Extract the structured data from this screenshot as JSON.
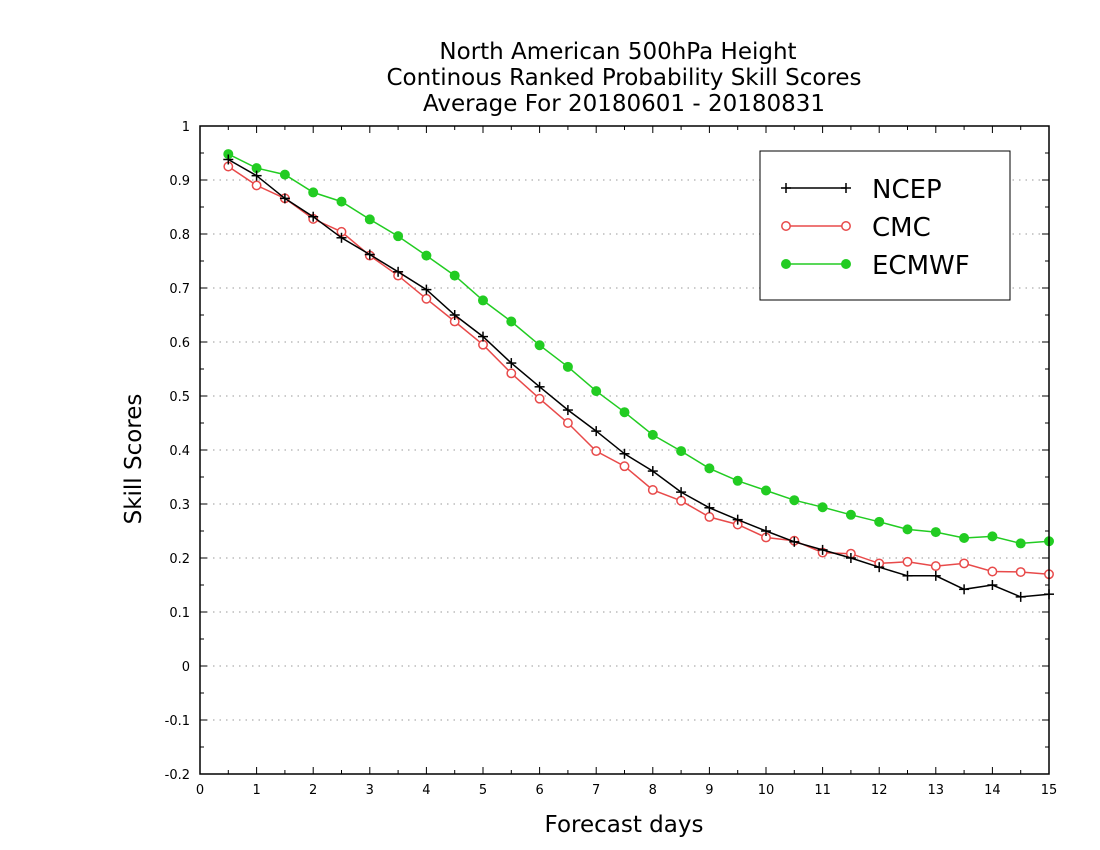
{
  "chart_data": {
    "type": "line",
    "title_lines": [
      "North American 500hPa Height",
      "Continous Ranked Probability Skill Scores",
      "Average For 20180601 - 20180831"
    ],
    "xlabel": "Forecast days",
    "ylabel": "Skill Scores",
    "xlim": [
      0,
      15
    ],
    "ylim": [
      -0.2,
      1
    ],
    "x_ticks": [
      0,
      1,
      2,
      3,
      4,
      5,
      6,
      7,
      8,
      9,
      10,
      11,
      12,
      13,
      14,
      15
    ],
    "x_tick_labels": [
      "0",
      "1",
      "2",
      "3",
      "4",
      "5",
      "6",
      "7",
      "8",
      "9",
      "10",
      "11",
      "12",
      "13",
      "14",
      "15"
    ],
    "y_ticks": [
      -0.2,
      -0.1,
      0,
      0.1,
      0.2,
      0.3,
      0.4,
      0.5,
      0.6,
      0.7,
      0.8,
      0.9,
      1
    ],
    "y_tick_labels": [
      "-0.2",
      "-0.1",
      "0",
      "0.1",
      "0.2",
      "0.3",
      "0.4",
      "0.5",
      "0.6",
      "0.7",
      "0.8",
      "0.9",
      "1"
    ],
    "grid": "horizontal dotted",
    "legend_position": "top-right",
    "x": [
      0.5,
      1,
      1.5,
      2,
      2.5,
      3,
      3.5,
      4,
      4.5,
      5,
      5.5,
      6,
      6.5,
      7,
      7.5,
      8,
      8.5,
      9,
      9.5,
      10,
      10.5,
      11,
      11.5,
      12,
      12.5,
      13,
      13.5,
      14,
      14.5,
      15
    ],
    "series": [
      {
        "name": "NCEP",
        "color": "#000000",
        "marker": "plus",
        "values": [
          0.938,
          0.908,
          0.866,
          0.832,
          0.793,
          0.762,
          0.73,
          0.697,
          0.65,
          0.61,
          0.561,
          0.517,
          0.474,
          0.435,
          0.393,
          0.361,
          0.322,
          0.293,
          0.271,
          0.25,
          0.23,
          0.215,
          0.2,
          0.183,
          0.167,
          0.167,
          0.142,
          0.15,
          0.128,
          0.133
        ]
      },
      {
        "name": "CMC",
        "color": "#e84a4a",
        "marker": "open-circle",
        "values": [
          0.925,
          0.89,
          0.866,
          0.828,
          0.804,
          0.76,
          0.723,
          0.68,
          0.638,
          0.595,
          0.542,
          0.495,
          0.45,
          0.398,
          0.37,
          0.326,
          0.306,
          0.276,
          0.262,
          0.238,
          0.232,
          0.21,
          0.208,
          0.19,
          0.193,
          0.185,
          0.19,
          0.175,
          0.174,
          0.17
        ]
      },
      {
        "name": "ECMWF",
        "color": "#22cc22",
        "marker": "filled-circle",
        "values": [
          0.948,
          0.922,
          0.91,
          0.877,
          0.86,
          0.827,
          0.796,
          0.76,
          0.723,
          0.677,
          0.638,
          0.594,
          0.554,
          0.509,
          0.47,
          0.428,
          0.398,
          0.366,
          0.343,
          0.325,
          0.307,
          0.294,
          0.28,
          0.267,
          0.253,
          0.248,
          0.237,
          0.24,
          0.227,
          0.231
        ]
      }
    ]
  }
}
